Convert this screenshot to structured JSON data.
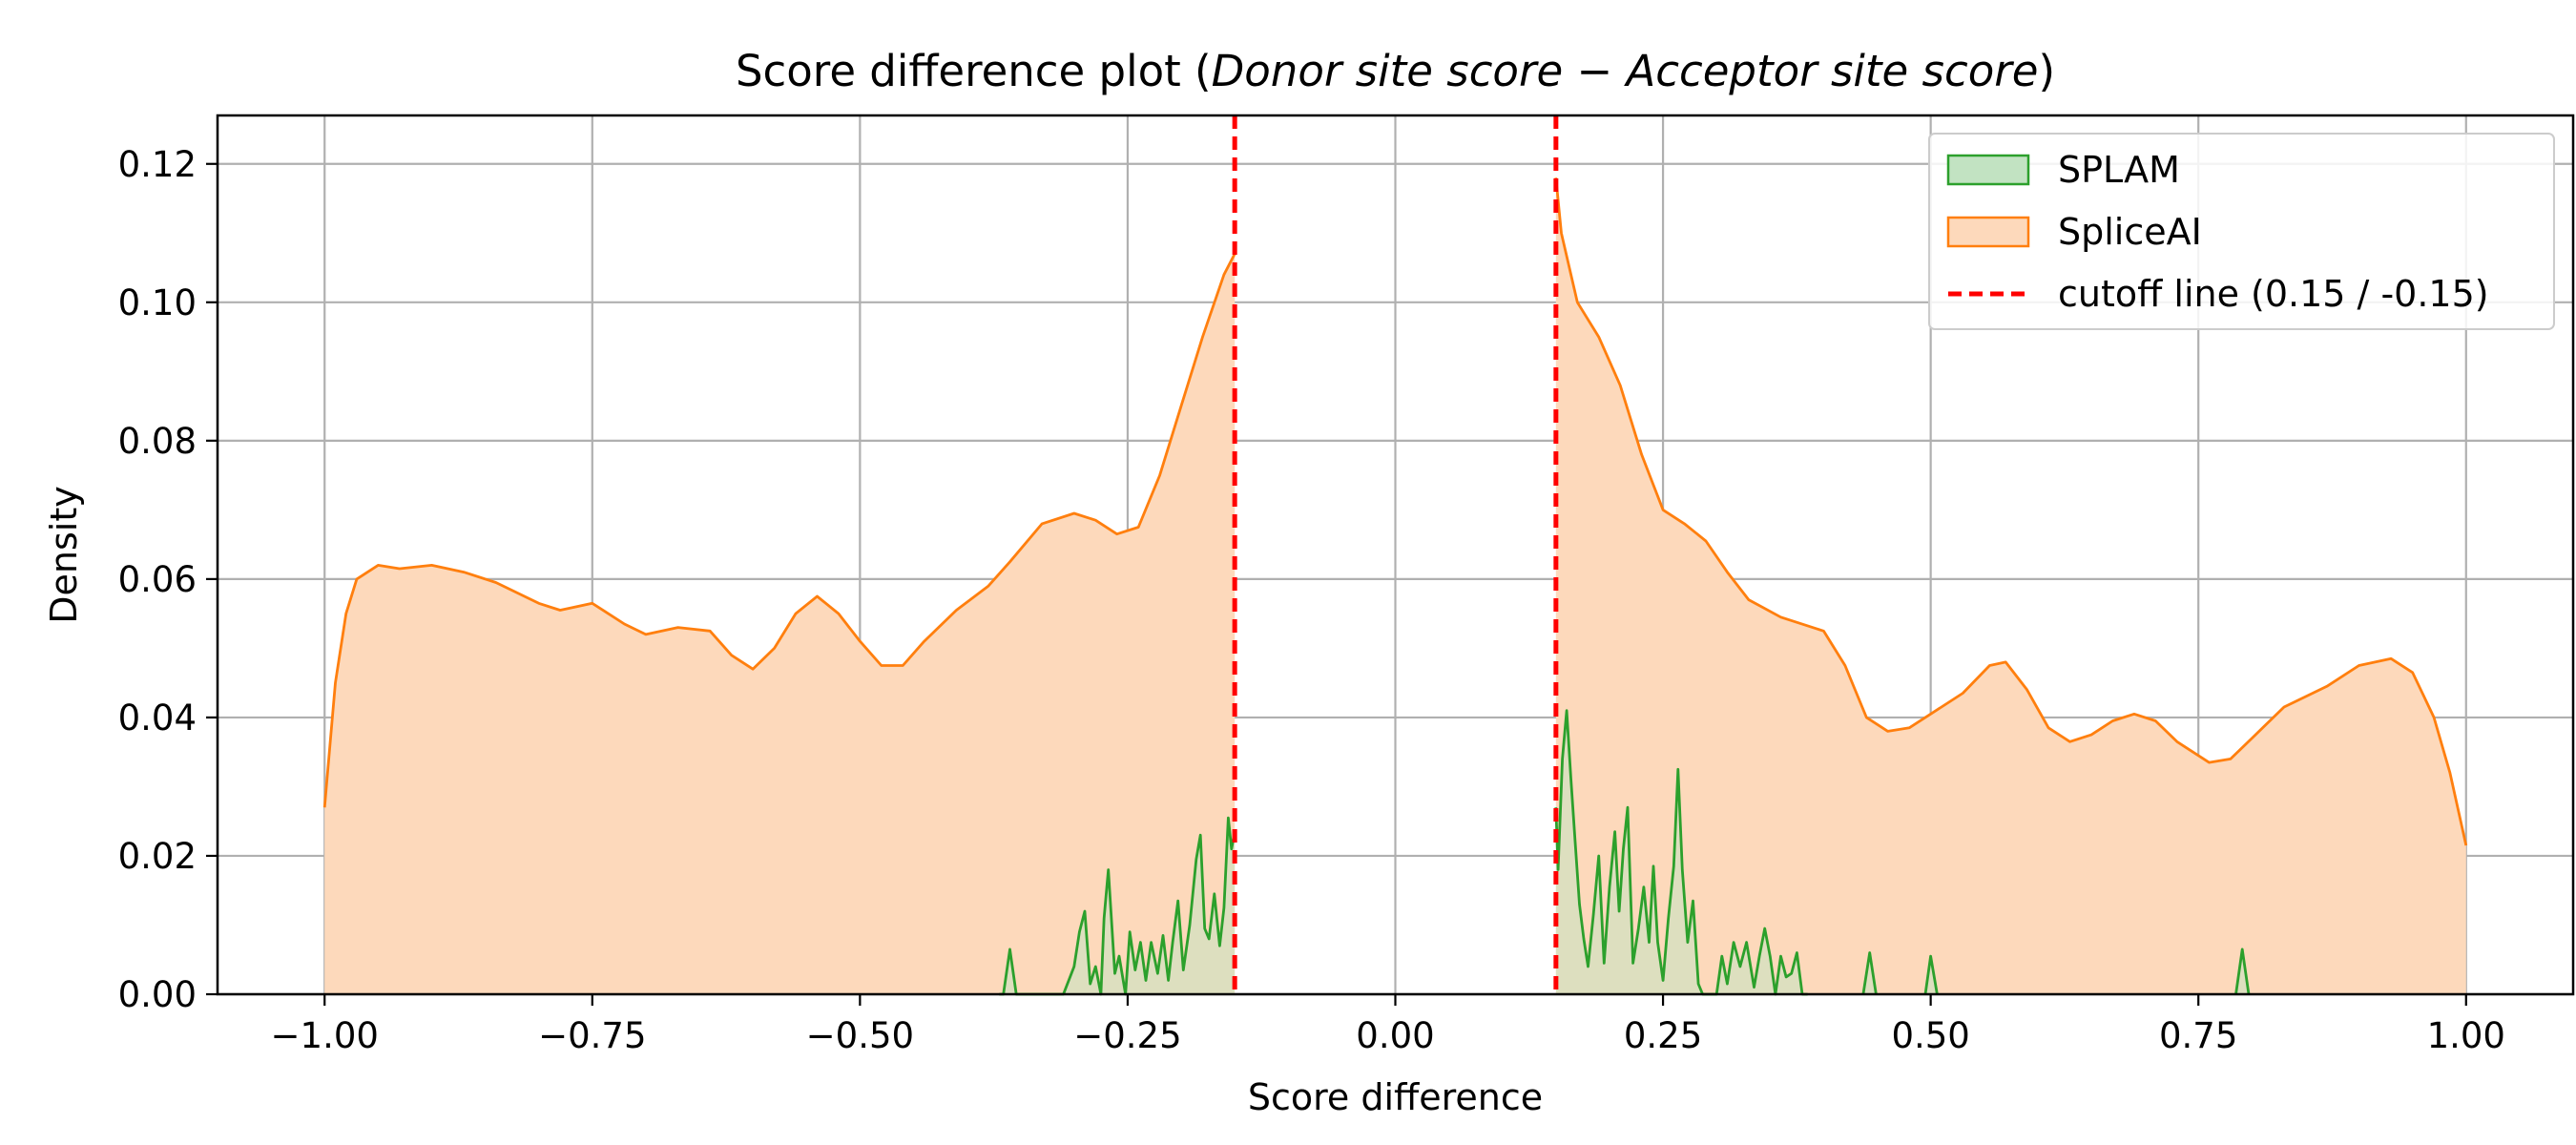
{
  "chart_data": {
    "type": "area",
    "title": {
      "prefix": "Score difference plot (",
      "italic": "Donor site score  −  Acceptor site score",
      "suffix": ")"
    },
    "xlabel": "Score difference",
    "ylabel": "Density",
    "xlim": [
      -1.1,
      1.1
    ],
    "ylim": [
      0,
      0.127
    ],
    "grid": true,
    "legend_position": "top-right",
    "x_ticks": [
      {
        "value": -1.0,
        "label": "−1.00"
      },
      {
        "value": -0.75,
        "label": "−0.75"
      },
      {
        "value": -0.5,
        "label": "−0.50"
      },
      {
        "value": -0.25,
        "label": "−0.25"
      },
      {
        "value": 0.0,
        "label": "0.00"
      },
      {
        "value": 0.25,
        "label": "0.25"
      },
      {
        "value": 0.5,
        "label": "0.50"
      },
      {
        "value": 0.75,
        "label": "0.75"
      },
      {
        "value": 1.0,
        "label": "1.00"
      }
    ],
    "y_ticks": [
      {
        "value": 0.0,
        "label": "0.00"
      },
      {
        "value": 0.02,
        "label": "0.02"
      },
      {
        "value": 0.04,
        "label": "0.04"
      },
      {
        "value": 0.06,
        "label": "0.06"
      },
      {
        "value": 0.08,
        "label": "0.08"
      },
      {
        "value": 0.1,
        "label": "0.10"
      },
      {
        "value": 0.12,
        "label": "0.12"
      }
    ],
    "series": [
      {
        "name": "SpliceAI",
        "color": "#ff7f0e",
        "fill": "#fdd9bb",
        "segments": [
          [
            [
              -1.0,
              0.027
            ],
            [
              -0.99,
              0.045
            ],
            [
              -0.98,
              0.055
            ],
            [
              -0.97,
              0.06
            ],
            [
              -0.95,
              0.062
            ],
            [
              -0.93,
              0.0615
            ],
            [
              -0.9,
              0.062
            ],
            [
              -0.87,
              0.061
            ],
            [
              -0.84,
              0.0595
            ],
            [
              -0.8,
              0.0565
            ],
            [
              -0.78,
              0.0555
            ],
            [
              -0.75,
              0.0565
            ],
            [
              -0.72,
              0.0535
            ],
            [
              -0.7,
              0.052
            ],
            [
              -0.67,
              0.053
            ],
            [
              -0.64,
              0.0525
            ],
            [
              -0.62,
              0.049
            ],
            [
              -0.6,
              0.047
            ],
            [
              -0.58,
              0.05
            ],
            [
              -0.56,
              0.055
            ],
            [
              -0.54,
              0.0575
            ],
            [
              -0.52,
              0.055
            ],
            [
              -0.5,
              0.051
            ],
            [
              -0.48,
              0.0475
            ],
            [
              -0.46,
              0.0475
            ],
            [
              -0.44,
              0.051
            ],
            [
              -0.41,
              0.0555
            ],
            [
              -0.38,
              0.059
            ],
            [
              -0.36,
              0.0625
            ],
            [
              -0.33,
              0.068
            ],
            [
              -0.3,
              0.0695
            ],
            [
              -0.28,
              0.0685
            ],
            [
              -0.26,
              0.0665
            ],
            [
              -0.24,
              0.0675
            ],
            [
              -0.22,
              0.075
            ],
            [
              -0.2,
              0.085
            ],
            [
              -0.18,
              0.095
            ],
            [
              -0.16,
              0.104
            ],
            [
              -0.15,
              0.107
            ]
          ],
          [
            [
              0.15,
              0.118
            ],
            [
              0.155,
              0.11
            ],
            [
              0.17,
              0.1
            ],
            [
              0.19,
              0.095
            ],
            [
              0.21,
              0.088
            ],
            [
              0.23,
              0.078
            ],
            [
              0.25,
              0.07
            ],
            [
              0.27,
              0.068
            ],
            [
              0.29,
              0.0655
            ],
            [
              0.31,
              0.061
            ],
            [
              0.33,
              0.057
            ],
            [
              0.36,
              0.0545
            ],
            [
              0.4,
              0.0525
            ],
            [
              0.42,
              0.0475
            ],
            [
              0.44,
              0.04
            ],
            [
              0.46,
              0.038
            ],
            [
              0.48,
              0.0385
            ],
            [
              0.5,
              0.0405
            ],
            [
              0.53,
              0.0435
            ],
            [
              0.555,
              0.0475
            ],
            [
              0.57,
              0.048
            ],
            [
              0.59,
              0.044
            ],
            [
              0.61,
              0.0385
            ],
            [
              0.63,
              0.0365
            ],
            [
              0.65,
              0.0375
            ],
            [
              0.67,
              0.0395
            ],
            [
              0.69,
              0.0405
            ],
            [
              0.71,
              0.0395
            ],
            [
              0.73,
              0.0365
            ],
            [
              0.76,
              0.0335
            ],
            [
              0.78,
              0.034
            ],
            [
              0.8,
              0.037
            ],
            [
              0.83,
              0.0415
            ],
            [
              0.87,
              0.0445
            ],
            [
              0.9,
              0.0475
            ],
            [
              0.93,
              0.0485
            ],
            [
              0.95,
              0.0465
            ],
            [
              0.97,
              0.04
            ],
            [
              0.985,
              0.032
            ],
            [
              1.0,
              0.0215
            ]
          ]
        ]
      },
      {
        "name": "SPLAM",
        "color": "#2ca02c",
        "fill": "#c2e3c2",
        "segments": [
          [
            [
              -0.37,
              0.0
            ],
            [
              -0.366,
              0.0
            ],
            [
              -0.36,
              0.0065
            ],
            [
              -0.354,
              0.0
            ],
            [
              -0.31,
              0.0
            ],
            [
              -0.3,
              0.004
            ],
            [
              -0.295,
              0.009
            ],
            [
              -0.29,
              0.012
            ],
            [
              -0.285,
              0.0015
            ],
            [
              -0.28,
              0.004
            ],
            [
              -0.275,
              0.0
            ],
            [
              -0.272,
              0.011
            ],
            [
              -0.268,
              0.018
            ],
            [
              -0.262,
              0.003
            ],
            [
              -0.258,
              0.0055
            ],
            [
              -0.252,
              0.0
            ],
            [
              -0.248,
              0.009
            ],
            [
              -0.243,
              0.0035
            ],
            [
              -0.238,
              0.0075
            ],
            [
              -0.233,
              0.002
            ],
            [
              -0.228,
              0.0075
            ],
            [
              -0.222,
              0.003
            ],
            [
              -0.217,
              0.0085
            ],
            [
              -0.212,
              0.002
            ],
            [
              -0.208,
              0.0075
            ],
            [
              -0.203,
              0.0135
            ],
            [
              -0.198,
              0.0035
            ],
            [
              -0.192,
              0.01
            ],
            [
              -0.186,
              0.0195
            ],
            [
              -0.182,
              0.023
            ],
            [
              -0.178,
              0.0095
            ],
            [
              -0.174,
              0.008
            ],
            [
              -0.169,
              0.0145
            ],
            [
              -0.164,
              0.007
            ],
            [
              -0.16,
              0.0125
            ],
            [
              -0.156,
              0.0255
            ],
            [
              -0.153,
              0.021
            ],
            [
              -0.15,
              0.0235
            ]
          ],
          [
            [
              0.15,
              0.027
            ],
            [
              0.152,
              0.018
            ],
            [
              0.156,
              0.034
            ],
            [
              0.16,
              0.041
            ],
            [
              0.164,
              0.031
            ],
            [
              0.168,
              0.022
            ],
            [
              0.172,
              0.013
            ],
            [
              0.176,
              0.008
            ],
            [
              0.18,
              0.004
            ],
            [
              0.185,
              0.0115
            ],
            [
              0.19,
              0.02
            ],
            [
              0.195,
              0.0045
            ],
            [
              0.2,
              0.0155
            ],
            [
              0.205,
              0.0235
            ],
            [
              0.209,
              0.012
            ],
            [
              0.213,
              0.021
            ],
            [
              0.217,
              0.027
            ],
            [
              0.222,
              0.0045
            ],
            [
              0.227,
              0.0095
            ],
            [
              0.232,
              0.0155
            ],
            [
              0.237,
              0.0075
            ],
            [
              0.241,
              0.0185
            ],
            [
              0.245,
              0.0075
            ],
            [
              0.25,
              0.002
            ],
            [
              0.255,
              0.011
            ],
            [
              0.26,
              0.0185
            ],
            [
              0.264,
              0.0325
            ],
            [
              0.268,
              0.018
            ],
            [
              0.273,
              0.0075
            ],
            [
              0.278,
              0.0135
            ],
            [
              0.283,
              0.0015
            ],
            [
              0.287,
              0.0
            ],
            [
              0.3,
              0.0
            ],
            [
              0.305,
              0.0055
            ],
            [
              0.31,
              0.0015
            ],
            [
              0.316,
              0.0075
            ],
            [
              0.322,
              0.004
            ],
            [
              0.328,
              0.0075
            ],
            [
              0.335,
              0.001
            ],
            [
              0.34,
              0.0055
            ],
            [
              0.345,
              0.0095
            ],
            [
              0.35,
              0.0055
            ],
            [
              0.355,
              0.0
            ],
            [
              0.36,
              0.0055
            ],
            [
              0.365,
              0.0025
            ],
            [
              0.37,
              0.003
            ],
            [
              0.375,
              0.006
            ],
            [
              0.38,
              0.0
            ],
            [
              0.385,
              0.0
            ]
          ],
          [
            [
              0.437,
              0.0
            ],
            [
              0.443,
              0.006
            ],
            [
              0.449,
              0.0
            ]
          ],
          [
            [
              0.495,
              0.0
            ],
            [
              0.5,
              0.0055
            ],
            [
              0.506,
              0.0
            ]
          ],
          [
            [
              0.785,
              0.0
            ],
            [
              0.791,
              0.0065
            ],
            [
              0.797,
              0.0
            ]
          ]
        ]
      }
    ],
    "cutoff": {
      "name": "cutoff line (0.15 / -0.15)",
      "values": [
        -0.15,
        0.15
      ],
      "color": "#ff0000"
    }
  }
}
